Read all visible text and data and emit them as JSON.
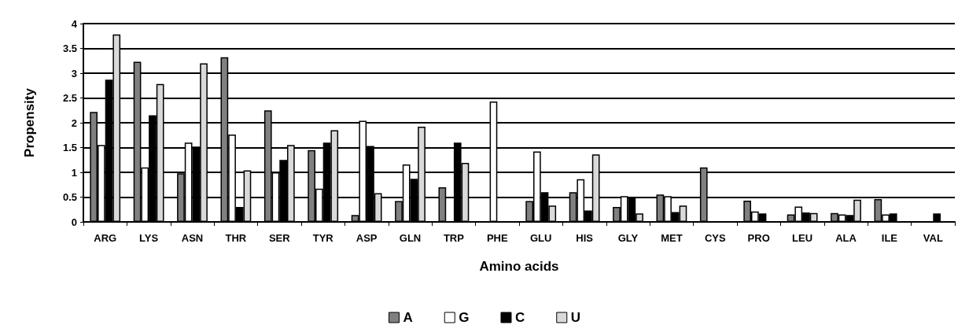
{
  "chart_data": {
    "type": "bar",
    "xlabel": "Amino acids",
    "ylabel": "Propensity",
    "categories": [
      "ARG",
      "LYS",
      "ASN",
      "THR",
      "SER",
      "TYR",
      "ASP",
      "GLN",
      "TRP",
      "PHE",
      "GLU",
      "HIS",
      "GLY",
      "MET",
      "CYS",
      "PRO",
      "LEU",
      "ALA",
      "ILE",
      "VAL"
    ],
    "series": [
      {
        "name": "A",
        "color": "#808080",
        "values": [
          2.22,
          3.23,
          0.98,
          3.32,
          2.25,
          1.45,
          0.14,
          0.42,
          0.7,
          null,
          0.42,
          0.6,
          0.3,
          0.55,
          1.1,
          0.43,
          0.15,
          0.18,
          0.46,
          null
        ]
      },
      {
        "name": "G",
        "color": "#ffffff",
        "values": [
          1.55,
          1.1,
          1.6,
          1.76,
          1.0,
          0.67,
          2.04,
          1.16,
          null,
          2.43,
          1.42,
          0.86,
          0.52,
          0.52,
          null,
          0.21,
          0.31,
          0.15,
          0.15,
          null
        ]
      },
      {
        "name": "C",
        "color": "#000000",
        "values": [
          2.87,
          2.15,
          1.52,
          0.3,
          1.25,
          1.6,
          1.53,
          0.87,
          1.6,
          null,
          0.6,
          0.23,
          0.48,
          0.2,
          null,
          0.17,
          0.19,
          0.14,
          0.17,
          0.17
        ]
      },
      {
        "name": "U",
        "color": "#d9d9d9",
        "values": [
          3.78,
          2.78,
          3.2,
          1.04,
          1.55,
          1.85,
          0.58,
          1.92,
          1.19,
          null,
          0.33,
          1.36,
          0.17,
          0.33,
          null,
          null,
          0.18,
          0.45,
          null,
          null
        ]
      }
    ],
    "ylim": [
      0,
      4
    ],
    "yticks": [
      0,
      0.5,
      1,
      1.5,
      2,
      2.5,
      3,
      3.5,
      4
    ],
    "grid": "y",
    "legend": "bottom"
  }
}
